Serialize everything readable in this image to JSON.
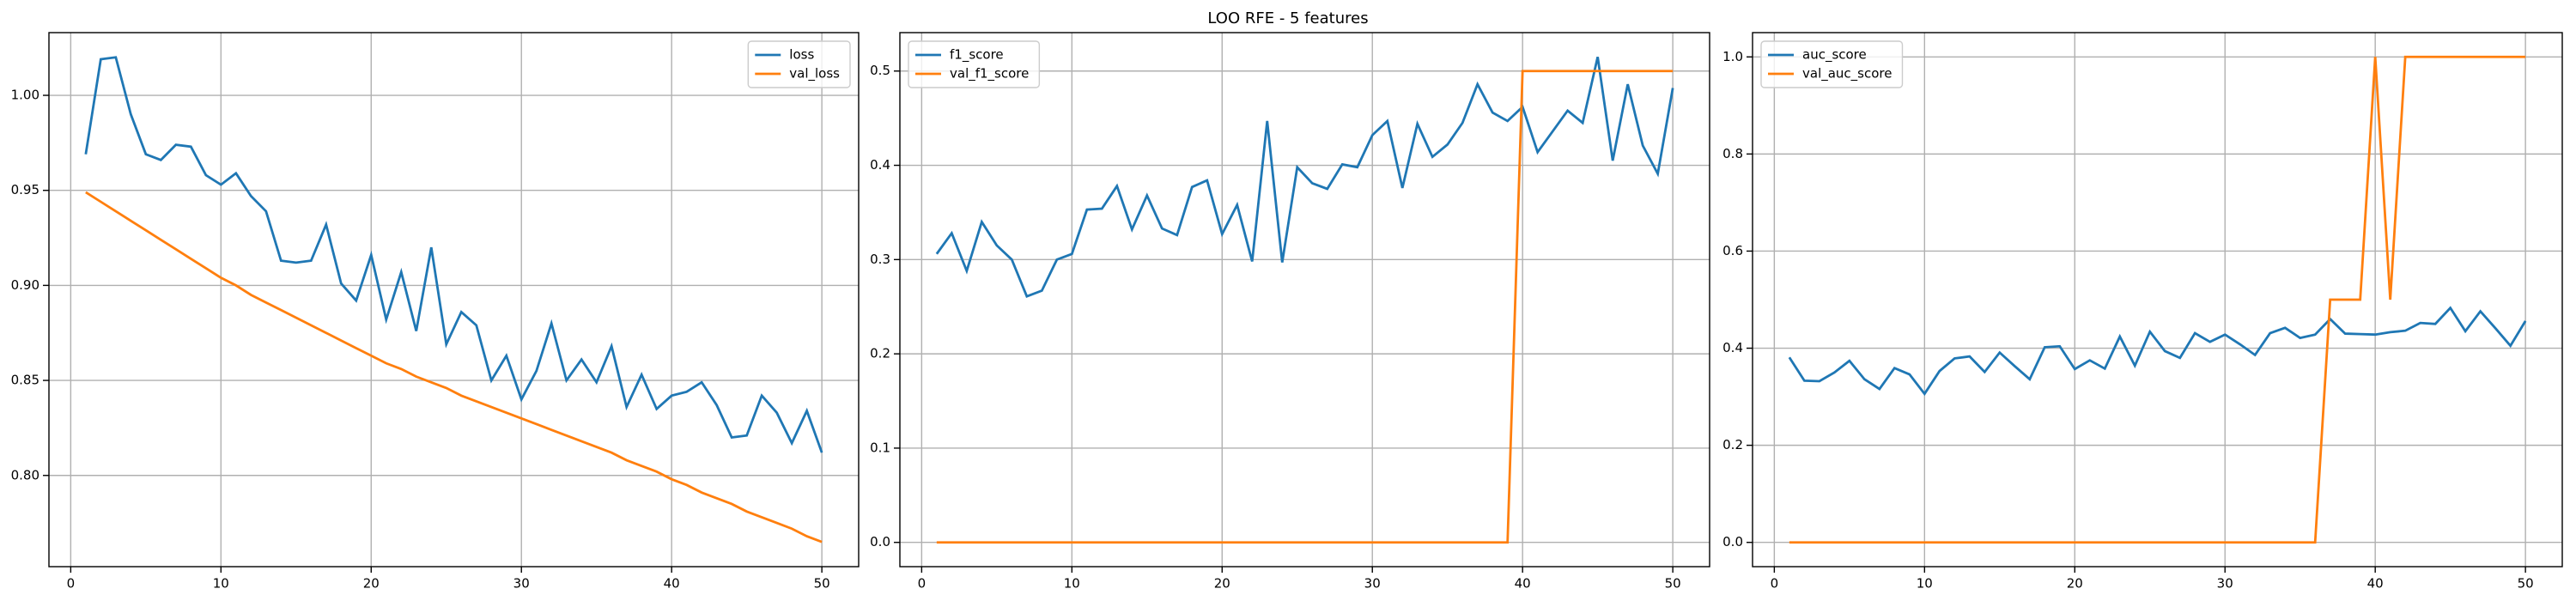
{
  "title": "LOO RFE - 5 features",
  "chart_data": [
    {
      "type": "line",
      "x": [
        1,
        2,
        3,
        4,
        5,
        6,
        7,
        8,
        9,
        10,
        11,
        12,
        13,
        14,
        15,
        16,
        17,
        18,
        19,
        20,
        21,
        22,
        23,
        24,
        25,
        26,
        27,
        28,
        29,
        30,
        31,
        32,
        33,
        34,
        35,
        36,
        37,
        38,
        39,
        40,
        41,
        42,
        43,
        44,
        45,
        46,
        47,
        48,
        49,
        50
      ],
      "series": [
        {
          "name": "loss",
          "color": "#1f77b4",
          "values": [
            0.969,
            1.019,
            1.02,
            0.99,
            0.969,
            0.966,
            0.974,
            0.973,
            0.958,
            0.953,
            0.959,
            0.947,
            0.939,
            0.913,
            0.912,
            0.913,
            0.932,
            0.901,
            0.892,
            0.916,
            0.882,
            0.907,
            0.876,
            0.92,
            0.869,
            0.886,
            0.879,
            0.85,
            0.863,
            0.84,
            0.855,
            0.88,
            0.85,
            0.861,
            0.849,
            0.868,
            0.836,
            0.853,
            0.835,
            0.842,
            0.844,
            0.849,
            0.837,
            0.82,
            0.821,
            0.842,
            0.833,
            0.817,
            0.834,
            0.812
          ]
        },
        {
          "name": "val_loss",
          "color": "#ff7f0e",
          "values": [
            0.949,
            0.944,
            0.939,
            0.934,
            0.929,
            0.924,
            0.919,
            0.914,
            0.909,
            0.904,
            0.9,
            0.895,
            0.891,
            0.887,
            0.883,
            0.879,
            0.875,
            0.871,
            0.867,
            0.863,
            0.859,
            0.856,
            0.852,
            0.849,
            0.846,
            0.842,
            0.839,
            0.836,
            0.833,
            0.83,
            0.827,
            0.824,
            0.821,
            0.818,
            0.815,
            0.812,
            0.808,
            0.805,
            0.802,
            0.798,
            0.795,
            0.791,
            0.788,
            0.785,
            0.781,
            0.778,
            0.775,
            0.772,
            0.768,
            0.765
          ]
        }
      ],
      "xlim": [
        -1.45,
        52.45
      ],
      "xticks": [
        0,
        10,
        20,
        30,
        40,
        50
      ],
      "ylim": [
        0.752,
        1.033
      ],
      "yticks": [
        {
          "value": 0.8,
          "label": "0.80"
        },
        {
          "value": 0.85,
          "label": "0.85"
        },
        {
          "value": 0.9,
          "label": "0.90"
        },
        {
          "value": 0.95,
          "label": "0.95"
        },
        {
          "value": 1.0,
          "label": "1.00"
        }
      ],
      "grid": true,
      "legend": "upper right"
    },
    {
      "type": "line",
      "x": [
        1,
        2,
        3,
        4,
        5,
        6,
        7,
        8,
        9,
        10,
        11,
        12,
        13,
        14,
        15,
        16,
        17,
        18,
        19,
        20,
        21,
        22,
        23,
        24,
        25,
        26,
        27,
        28,
        29,
        30,
        31,
        32,
        33,
        34,
        35,
        36,
        37,
        38,
        39,
        40,
        41,
        42,
        43,
        44,
        45,
        46,
        47,
        48,
        49,
        50
      ],
      "series": [
        {
          "name": "f1_score",
          "color": "#1f77b4",
          "values": [
            0.306,
            0.328,
            0.288,
            0.34,
            0.315,
            0.3,
            0.261,
            0.267,
            0.3,
            0.306,
            0.353,
            0.354,
            0.378,
            0.332,
            0.368,
            0.333,
            0.326,
            0.377,
            0.384,
            0.327,
            0.358,
            0.298,
            0.447,
            0.297,
            0.398,
            0.381,
            0.375,
            0.401,
            0.398,
            0.432,
            0.447,
            0.376,
            0.444,
            0.409,
            0.422,
            0.445,
            0.486,
            0.456,
            0.447,
            0.462,
            0.414,
            0.436,
            0.458,
            0.445,
            0.515,
            0.405,
            0.486,
            0.421,
            0.391,
            0.482
          ]
        },
        {
          "name": "val_f1_score",
          "color": "#ff7f0e",
          "values": [
            0,
            0,
            0,
            0,
            0,
            0,
            0,
            0,
            0,
            0,
            0,
            0,
            0,
            0,
            0,
            0,
            0,
            0,
            0,
            0,
            0,
            0,
            0,
            0,
            0,
            0,
            0,
            0,
            0,
            0,
            0,
            0,
            0,
            0,
            0,
            0,
            0,
            0,
            0,
            0.5,
            0.5,
            0.5,
            0.5,
            0.5,
            0.5,
            0.5,
            0.5,
            0.5,
            0.5,
            0.5
          ]
        }
      ],
      "xlim": [
        -1.45,
        52.45
      ],
      "xticks": [
        0,
        10,
        20,
        30,
        40,
        50
      ],
      "ylim": [
        -0.02575,
        0.54075
      ],
      "yticks": [
        {
          "value": 0,
          "label": "0.0"
        },
        0.1,
        0.2,
        0.3,
        0.4,
        0.5
      ],
      "grid": true,
      "legend": "upper left"
    },
    {
      "type": "line",
      "x": [
        1,
        2,
        3,
        4,
        5,
        6,
        7,
        8,
        9,
        10,
        11,
        12,
        13,
        14,
        15,
        16,
        17,
        18,
        19,
        20,
        21,
        22,
        23,
        24,
        25,
        26,
        27,
        28,
        29,
        30,
        31,
        32,
        33,
        34,
        35,
        36,
        37,
        38,
        39,
        40,
        41,
        42,
        43,
        44,
        45,
        46,
        47,
        48,
        49,
        50
      ],
      "series": [
        {
          "name": "auc_score",
          "color": "#1f77b4",
          "values": [
            0.381,
            0.333,
            0.332,
            0.35,
            0.374,
            0.336,
            0.316,
            0.359,
            0.346,
            0.306,
            0.353,
            0.379,
            0.383,
            0.351,
            0.391,
            0.363,
            0.336,
            0.402,
            0.404,
            0.357,
            0.375,
            0.358,
            0.424,
            0.364,
            0.434,
            0.394,
            0.38,
            0.431,
            0.413,
            0.428,
            0.408,
            0.386,
            0.431,
            0.442,
            0.421,
            0.428,
            0.46,
            0.43,
            0.429,
            0.428,
            0.433,
            0.436,
            0.452,
            0.45,
            0.483,
            0.435,
            0.476,
            0.441,
            0.405,
            0.456
          ]
        },
        {
          "name": "val_auc_score",
          "color": "#ff7f0e",
          "values": [
            0,
            0,
            0,
            0,
            0,
            0,
            0,
            0,
            0,
            0,
            0,
            0,
            0,
            0,
            0,
            0,
            0,
            0,
            0,
            0,
            0,
            0,
            0,
            0,
            0,
            0,
            0,
            0,
            0,
            0,
            0,
            0,
            0,
            0,
            0,
            0,
            0.5,
            0.5,
            0.5,
            1,
            0.5,
            1,
            1,
            1,
            1,
            1,
            1,
            1,
            1,
            1
          ]
        }
      ],
      "xlim": [
        -1.45,
        52.45
      ],
      "xticks": [
        0,
        10,
        20,
        30,
        40,
        50
      ],
      "ylim": [
        -0.05,
        1.05
      ],
      "yticks": [
        {
          "value": 0,
          "label": "0.0"
        },
        0.2,
        0.4,
        0.6,
        0.8,
        {
          "value": 1,
          "label": "1.0"
        }
      ],
      "grid": true,
      "legend": "upper left"
    }
  ]
}
